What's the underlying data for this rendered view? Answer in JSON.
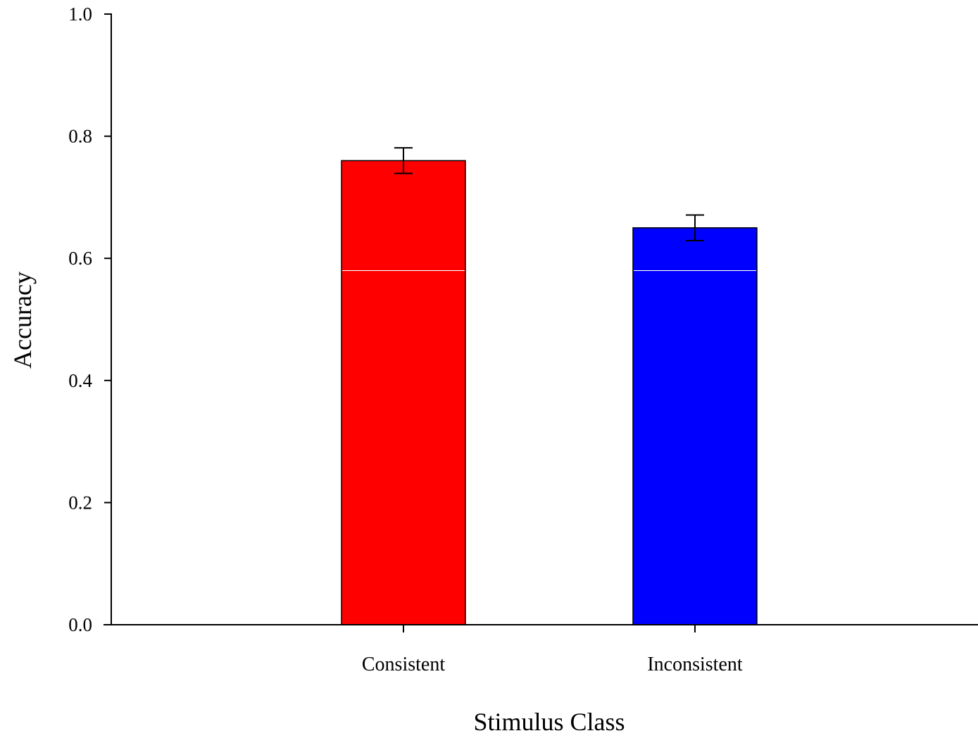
{
  "chart_data": {
    "type": "bar",
    "title": "",
    "xlabel": "Stimulus Class",
    "ylabel": "Accuracy",
    "categories": [
      "Consistent",
      "Inconsistent"
    ],
    "values": [
      0.76,
      0.65
    ],
    "errors": [
      0.021,
      0.021
    ],
    "colors": [
      "#ff0000",
      "#0000ff"
    ],
    "reference_line": 0.58,
    "ylim": [
      0,
      1.0
    ],
    "yticks": [
      "0.0",
      "0.2",
      "0.4",
      "0.6",
      "0.8",
      "1.0"
    ],
    "grid": false,
    "legend": "none"
  }
}
